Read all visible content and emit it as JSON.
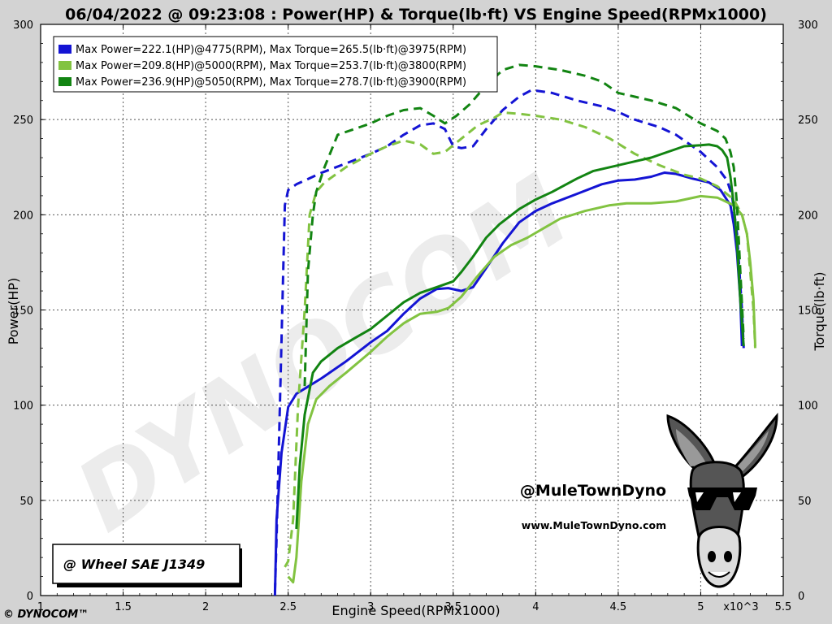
{
  "chart_data": {
    "type": "line",
    "title": "06/04/2022 @ 09:23:08 : Power(HP) & Torque(lb·ft) VS Engine Speed(RPMx1000)",
    "xlabel": "Engine Speed(RPMx1000)",
    "ylabel_left": "Power(HP)",
    "ylabel_right": "Torque(lb·ft)",
    "x_multiplier_label": "x10^3",
    "xlim": [
      1,
      5.5
    ],
    "ylim": [
      0,
      300
    ],
    "x_ticks": [
      "1",
      "1.5",
      "2",
      "2.5",
      "3",
      "3.5",
      "4",
      "4.5",
      "5",
      "5.5"
    ],
    "y_ticks_left": [
      "0",
      "50",
      "100",
      "150",
      "200",
      "250",
      "300"
    ],
    "y_ticks_right": [
      "0",
      "50",
      "100",
      "150",
      "200",
      "250",
      "300"
    ],
    "grid": true,
    "legend_position": "top-left",
    "series": [
      {
        "name": "Max Power=222.1(HP)@4775(RPM), Max Torque=265.5(lb·ft)@3975(RPM)",
        "color": "#1414d4",
        "power": [
          [
            2.42,
            0
          ],
          [
            2.43,
            40
          ],
          [
            2.46,
            75
          ],
          [
            2.5,
            99
          ],
          [
            2.55,
            106
          ],
          [
            2.7,
            114
          ],
          [
            2.85,
            123
          ],
          [
            3.0,
            133
          ],
          [
            3.1,
            139
          ],
          [
            3.2,
            148
          ],
          [
            3.3,
            156
          ],
          [
            3.4,
            161
          ],
          [
            3.47,
            161.5
          ],
          [
            3.55,
            160
          ],
          [
            3.62,
            162
          ],
          [
            3.7,
            172
          ],
          [
            3.8,
            185
          ],
          [
            3.9,
            196
          ],
          [
            4.0,
            202
          ],
          [
            4.1,
            206
          ],
          [
            4.25,
            211
          ],
          [
            4.4,
            216
          ],
          [
            4.5,
            218
          ],
          [
            4.6,
            218.5
          ],
          [
            4.7,
            220
          ],
          [
            4.78,
            222.1
          ],
          [
            4.85,
            221.5
          ],
          [
            4.95,
            219
          ],
          [
            5.05,
            217
          ],
          [
            5.12,
            213
          ],
          [
            5.18,
            205
          ],
          [
            5.2,
            195
          ],
          [
            5.22,
            180
          ],
          [
            5.24,
            155
          ],
          [
            5.25,
            131
          ]
        ],
        "torque": [
          [
            2.42,
            2
          ],
          [
            2.43,
            30
          ],
          [
            2.45,
            100
          ],
          [
            2.48,
            205
          ],
          [
            2.5,
            213
          ],
          [
            2.55,
            216
          ],
          [
            2.6,
            218
          ],
          [
            2.7,
            222
          ],
          [
            2.85,
            227
          ],
          [
            3.0,
            232
          ],
          [
            3.1,
            236
          ],
          [
            3.2,
            242
          ],
          [
            3.3,
            247
          ],
          [
            3.38,
            248
          ],
          [
            3.45,
            245
          ],
          [
            3.5,
            236
          ],
          [
            3.55,
            235
          ],
          [
            3.62,
            236
          ],
          [
            3.7,
            245
          ],
          [
            3.8,
            255
          ],
          [
            3.9,
            262
          ],
          [
            3.975,
            265.5
          ],
          [
            4.1,
            264
          ],
          [
            4.25,
            260
          ],
          [
            4.4,
            257
          ],
          [
            4.5,
            254
          ],
          [
            4.6,
            250
          ],
          [
            4.75,
            246
          ],
          [
            4.85,
            242
          ],
          [
            5.0,
            233
          ],
          [
            5.1,
            225
          ],
          [
            5.16,
            218
          ],
          [
            5.19,
            210
          ],
          [
            5.22,
            190
          ],
          [
            5.25,
            150
          ],
          [
            5.26,
            130
          ]
        ]
      },
      {
        "name": "Max Power=209.8(HP)@5000(RPM), Max Torque=253.7(lb·ft)@3800(RPM)",
        "color": "#82c341",
        "power": [
          [
            2.5,
            10
          ],
          [
            2.53,
            7
          ],
          [
            2.55,
            20
          ],
          [
            2.58,
            60
          ],
          [
            2.62,
            90
          ],
          [
            2.67,
            103
          ],
          [
            2.75,
            110
          ],
          [
            2.85,
            117
          ],
          [
            3.0,
            128
          ],
          [
            3.1,
            136
          ],
          [
            3.2,
            143
          ],
          [
            3.3,
            148
          ],
          [
            3.4,
            149
          ],
          [
            3.47,
            151
          ],
          [
            3.55,
            157
          ],
          [
            3.65,
            168
          ],
          [
            3.75,
            178
          ],
          [
            3.85,
            184
          ],
          [
            3.95,
            188
          ],
          [
            4.05,
            193
          ],
          [
            4.15,
            198
          ],
          [
            4.3,
            202
          ],
          [
            4.45,
            205
          ],
          [
            4.55,
            206
          ],
          [
            4.7,
            206
          ],
          [
            4.85,
            207
          ],
          [
            5.0,
            209.8
          ],
          [
            5.1,
            209
          ],
          [
            5.2,
            205
          ],
          [
            5.25,
            200
          ],
          [
            5.28,
            190
          ],
          [
            5.3,
            175
          ],
          [
            5.32,
            155
          ],
          [
            5.33,
            131
          ]
        ],
        "torque": [
          [
            2.48,
            15
          ],
          [
            2.5,
            18
          ],
          [
            2.53,
            40
          ],
          [
            2.56,
            100
          ],
          [
            2.6,
            150
          ],
          [
            2.63,
            200
          ],
          [
            2.67,
            212
          ],
          [
            2.72,
            217
          ],
          [
            2.85,
            225
          ],
          [
            3.0,
            232
          ],
          [
            3.1,
            236
          ],
          [
            3.2,
            239
          ],
          [
            3.3,
            237
          ],
          [
            3.38,
            232
          ],
          [
            3.45,
            233
          ],
          [
            3.55,
            240
          ],
          [
            3.65,
            247
          ],
          [
            3.75,
            251
          ],
          [
            3.8,
            253.7
          ],
          [
            3.9,
            253
          ],
          [
            4.0,
            252
          ],
          [
            4.15,
            250
          ],
          [
            4.3,
            246
          ],
          [
            4.45,
            240
          ],
          [
            4.6,
            232
          ],
          [
            4.75,
            226
          ],
          [
            4.9,
            221
          ],
          [
            5.0,
            219
          ],
          [
            5.1,
            215
          ],
          [
            5.2,
            208
          ],
          [
            5.25,
            200
          ],
          [
            5.28,
            190
          ],
          [
            5.3,
            170
          ],
          [
            5.32,
            150
          ],
          [
            5.33,
            130
          ]
        ]
      },
      {
        "name": "Max Power=236.9(HP)@5050(RPM), Max Torque=278.7(lb·ft)@3900(RPM)",
        "color": "#128412",
        "power": [
          [
            2.55,
            35
          ],
          [
            2.57,
            68
          ],
          [
            2.6,
            95
          ],
          [
            2.65,
            117
          ],
          [
            2.7,
            123
          ],
          [
            2.8,
            130
          ],
          [
            2.9,
            135
          ],
          [
            3.0,
            140
          ],
          [
            3.1,
            147
          ],
          [
            3.2,
            154
          ],
          [
            3.3,
            159
          ],
          [
            3.4,
            162
          ],
          [
            3.5,
            165
          ],
          [
            3.55,
            170
          ],
          [
            3.62,
            178
          ],
          [
            3.7,
            188
          ],
          [
            3.78,
            195
          ],
          [
            3.9,
            203
          ],
          [
            4.0,
            208
          ],
          [
            4.1,
            212
          ],
          [
            4.25,
            219
          ],
          [
            4.35,
            223
          ],
          [
            4.5,
            226
          ],
          [
            4.6,
            228
          ],
          [
            4.7,
            230
          ],
          [
            4.8,
            233
          ],
          [
            4.9,
            236
          ],
          [
            5.0,
            236.5
          ],
          [
            5.05,
            236.9
          ],
          [
            5.1,
            236
          ],
          [
            5.13,
            234
          ],
          [
            5.16,
            230
          ],
          [
            5.18,
            220
          ],
          [
            5.2,
            205
          ],
          [
            5.22,
            185
          ],
          [
            5.24,
            155
          ],
          [
            5.26,
            131
          ]
        ],
        "torque": [
          [
            2.6,
            110
          ],
          [
            2.62,
            170
          ],
          [
            2.65,
            200
          ],
          [
            2.67,
            212
          ],
          [
            2.72,
            225
          ],
          [
            2.8,
            242
          ],
          [
            2.9,
            245
          ],
          [
            3.0,
            248
          ],
          [
            3.1,
            252
          ],
          [
            3.2,
            255
          ],
          [
            3.3,
            256
          ],
          [
            3.38,
            252
          ],
          [
            3.45,
            248
          ],
          [
            3.52,
            252
          ],
          [
            3.6,
            258
          ],
          [
            3.7,
            268
          ],
          [
            3.8,
            276
          ],
          [
            3.9,
            278.7
          ],
          [
            4.0,
            278
          ],
          [
            4.15,
            276
          ],
          [
            4.3,
            273
          ],
          [
            4.4,
            270
          ],
          [
            4.5,
            264
          ],
          [
            4.6,
            262
          ],
          [
            4.7,
            260
          ],
          [
            4.85,
            256
          ],
          [
            5.0,
            248
          ],
          [
            5.1,
            244
          ],
          [
            5.15,
            240
          ],
          [
            5.18,
            233
          ],
          [
            5.2,
            225
          ],
          [
            5.22,
            205
          ],
          [
            5.24,
            170
          ],
          [
            5.26,
            135
          ]
        ]
      }
    ]
  },
  "branding": {
    "handle": "@MuleTownDyno",
    "website": "www.MuleTownDyno.com",
    "standard": "@ Wheel SAE J1349",
    "watermark": "DYNOCOM",
    "copyright": "© DYNOCOM™"
  },
  "colors": {
    "background": "#d3d3d3",
    "plot_area": "#ffffff",
    "grid": "#555555"
  }
}
